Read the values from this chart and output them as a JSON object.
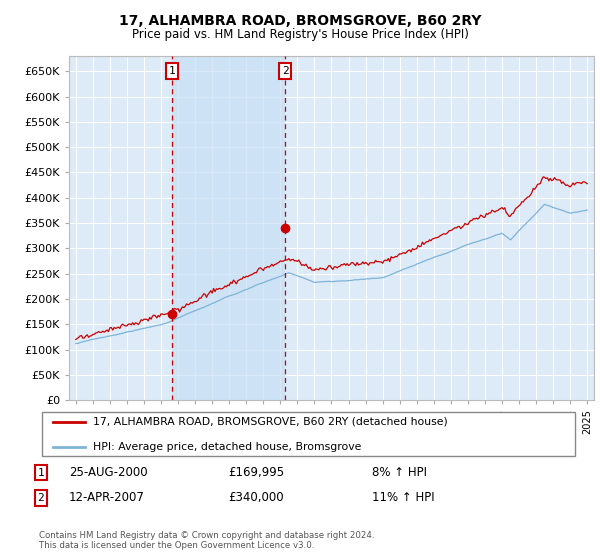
{
  "title": "17, ALHAMBRA ROAD, BROMSGROVE, B60 2RY",
  "subtitle": "Price paid vs. HM Land Registry's House Price Index (HPI)",
  "ylim": [
    0,
    680000
  ],
  "yticks": [
    0,
    50000,
    100000,
    150000,
    200000,
    250000,
    300000,
    350000,
    400000,
    450000,
    500000,
    550000,
    600000,
    650000
  ],
  "ytick_labels": [
    "£0",
    "£50K",
    "£100K",
    "£150K",
    "£200K",
    "£250K",
    "£300K",
    "£350K",
    "£400K",
    "£450K",
    "£500K",
    "£550K",
    "£600K",
    "£650K"
  ],
  "background_color": "#ffffff",
  "plot_background_color": "#ddeaf7",
  "shade_color": "#c8dff5",
  "grid_color": "#ffffff",
  "hpi_line_color": "#7eb4d8",
  "price_line_color": "#cc0000",
  "dashed_line_color": "#cc0000",
  "sale1_year": 2000.65,
  "sale1_price": 169995,
  "sale1_label": "1",
  "sale2_year": 2007.28,
  "sale2_price": 340000,
  "sale2_label": "2",
  "xstart": 1995,
  "xend": 2025,
  "legend_label1": "17, ALHAMBRA ROAD, BROMSGROVE, B60 2RY (detached house)",
  "legend_label2": "HPI: Average price, detached house, Bromsgrove",
  "annotation1_date": "25-AUG-2000",
  "annotation1_price": "£169,995",
  "annotation1_hpi": "8% ↑ HPI",
  "annotation2_date": "12-APR-2007",
  "annotation2_price": "£340,000",
  "annotation2_hpi": "11% ↑ HPI",
  "footer": "Contains HM Land Registry data © Crown copyright and database right 2024.\nThis data is licensed under the Open Government Licence v3.0."
}
